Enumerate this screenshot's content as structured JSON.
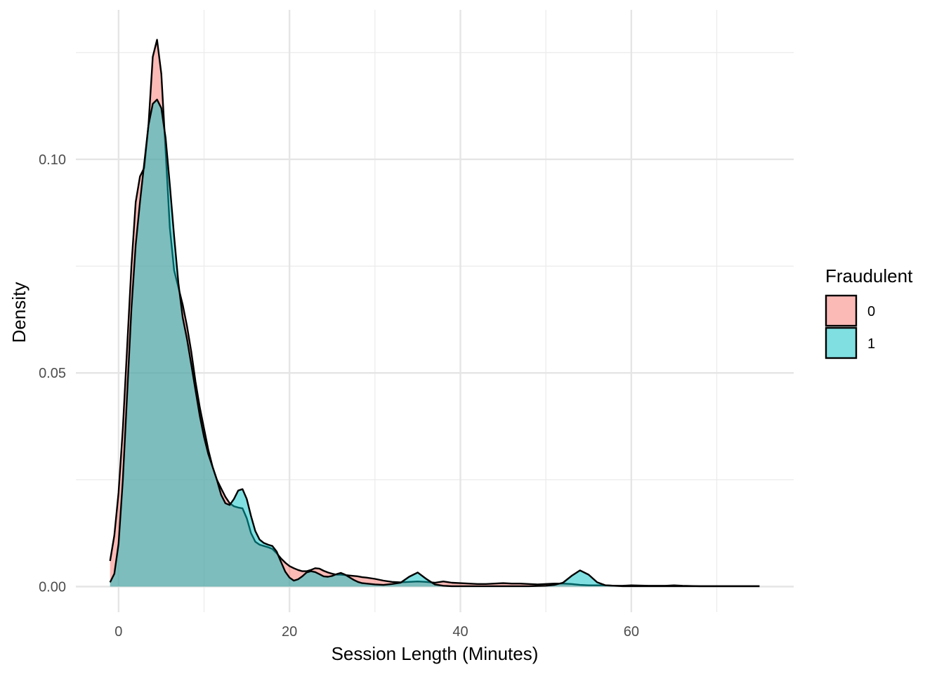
{
  "chart_data": {
    "type": "area",
    "subtype": "density",
    "title": "",
    "xlabel": "Session Length (Minutes)",
    "ylabel": "Density",
    "xlim": [
      -5,
      79
    ],
    "ylim": [
      -0.006,
      0.135
    ],
    "x_ticks": [
      0,
      20,
      40,
      60
    ],
    "x_tick_labels": [
      "0",
      "20",
      "40",
      "60"
    ],
    "y_ticks": [
      0.0,
      0.05,
      0.1
    ],
    "y_tick_labels": [
      "0.00",
      "0.05",
      "0.10"
    ],
    "grid": true,
    "legend": {
      "title": "Fraudulent",
      "position": "right"
    },
    "series": [
      {
        "name": "0",
        "color": "#F8766D",
        "x": [
          -1,
          -0.5,
          0,
          0.5,
          1,
          1.5,
          2,
          2.5,
          3,
          3.5,
          4,
          4.5,
          5,
          5.5,
          6,
          6.5,
          7,
          7.5,
          8,
          8.5,
          9,
          9.5,
          10,
          10.5,
          11,
          11.5,
          12,
          12.5,
          13,
          13.5,
          14,
          14.5,
          15,
          15.5,
          16,
          16.5,
          17,
          17.5,
          18,
          18.5,
          19,
          19.5,
          20,
          20.5,
          21,
          21.5,
          22,
          22.5,
          23,
          23.5,
          24,
          24.5,
          25,
          25.5,
          26,
          26.5,
          27,
          27.5,
          28,
          28.5,
          29,
          30,
          31,
          32,
          33,
          34,
          35,
          36,
          37,
          38,
          39,
          40,
          41,
          42,
          43,
          44,
          45,
          46,
          47,
          48,
          49,
          50,
          51,
          52,
          53,
          54,
          55,
          56,
          57,
          58,
          59,
          60,
          62,
          64,
          65,
          66,
          68,
          70,
          72,
          74,
          75
        ],
        "values": [
          0.006,
          0.012,
          0.022,
          0.037,
          0.056,
          0.075,
          0.09,
          0.096,
          0.098,
          0.108,
          0.124,
          0.128,
          0.12,
          0.102,
          0.084,
          0.074,
          0.07,
          0.066,
          0.061,
          0.055,
          0.048,
          0.042,
          0.037,
          0.032,
          0.028,
          0.025,
          0.023,
          0.021,
          0.0195,
          0.0188,
          0.0185,
          0.0183,
          0.016,
          0.0125,
          0.0105,
          0.0098,
          0.0095,
          0.0092,
          0.0088,
          0.0078,
          0.0066,
          0.0056,
          0.0048,
          0.0043,
          0.0039,
          0.0036,
          0.0036,
          0.0039,
          0.0043,
          0.0042,
          0.0037,
          0.0033,
          0.003,
          0.0028,
          0.0028,
          0.0027,
          0.0026,
          0.0025,
          0.0024,
          0.0022,
          0.0021,
          0.0018,
          0.0014,
          0.0011,
          0.001,
          0.0011,
          0.0012,
          0.0011,
          0.0009,
          0.0012,
          0.0009,
          0.0008,
          0.0007,
          0.0006,
          0.0006,
          0.0007,
          0.0008,
          0.0007,
          0.0007,
          0.0006,
          0.0005,
          0.0006,
          0.0007,
          0.0007,
          0.0006,
          0.0004,
          0.0003,
          0.0003,
          0.0003,
          0.0002,
          0.0002,
          0.0003,
          0.0002,
          0.0002,
          0.0003,
          0.0002,
          0.0001,
          0.0001,
          0.0001,
          0.0001,
          0.0001
        ]
      },
      {
        "name": "1",
        "color": "#00BFC4",
        "x": [
          -1,
          -0.5,
          0,
          0.5,
          1,
          1.5,
          2,
          2.5,
          3,
          3.5,
          4,
          4.5,
          5,
          5.5,
          6,
          6.5,
          7,
          7.5,
          8,
          8.5,
          9,
          9.5,
          10,
          10.5,
          11,
          11.5,
          12,
          12.5,
          13,
          13.5,
          14,
          14.5,
          15,
          15.5,
          16,
          16.5,
          17,
          17.5,
          18,
          18.5,
          19,
          19.5,
          20,
          20.5,
          21,
          21.5,
          22,
          22.5,
          23,
          23.5,
          24,
          24.5,
          25,
          25.5,
          26,
          26.5,
          27,
          27.5,
          28,
          28.5,
          29,
          30,
          31,
          32,
          33,
          34,
          35,
          36,
          37,
          38,
          39,
          40,
          42,
          44,
          46,
          48,
          50,
          51,
          52,
          53,
          54,
          55,
          56,
          57,
          58,
          59,
          60,
          62,
          64,
          66,
          68,
          70,
          72,
          74,
          75
        ],
        "values": [
          0.001,
          0.003,
          0.01,
          0.025,
          0.045,
          0.065,
          0.08,
          0.09,
          0.099,
          0.108,
          0.113,
          0.114,
          0.112,
          0.105,
          0.094,
          0.082,
          0.071,
          0.063,
          0.058,
          0.052,
          0.046,
          0.04,
          0.035,
          0.031,
          0.028,
          0.025,
          0.0215,
          0.0195,
          0.0191,
          0.0205,
          0.0225,
          0.0228,
          0.0205,
          0.0165,
          0.013,
          0.011,
          0.0102,
          0.0098,
          0.0095,
          0.0082,
          0.0058,
          0.0035,
          0.0021,
          0.0014,
          0.0017,
          0.0024,
          0.0033,
          0.0036,
          0.0034,
          0.0029,
          0.0024,
          0.0023,
          0.0025,
          0.0029,
          0.0032,
          0.0028,
          0.0022,
          0.0016,
          0.0011,
          0.0008,
          0.0007,
          0.0005,
          0.0004,
          0.0006,
          0.0009,
          0.0023,
          0.0033,
          0.0018,
          0.0005,
          0.0002,
          0.0001,
          0.0001,
          0.0001,
          0.0001,
          0.0001,
          0.0001,
          0.0002,
          0.0004,
          0.0009,
          0.0025,
          0.0038,
          0.0028,
          0.001,
          0.0003,
          0.0002,
          0.0001,
          0.0001,
          0.0001,
          0.0001,
          0.0001,
          0.0001,
          0.0001,
          0.0001,
          0.0001,
          0.0001
        ]
      }
    ]
  }
}
